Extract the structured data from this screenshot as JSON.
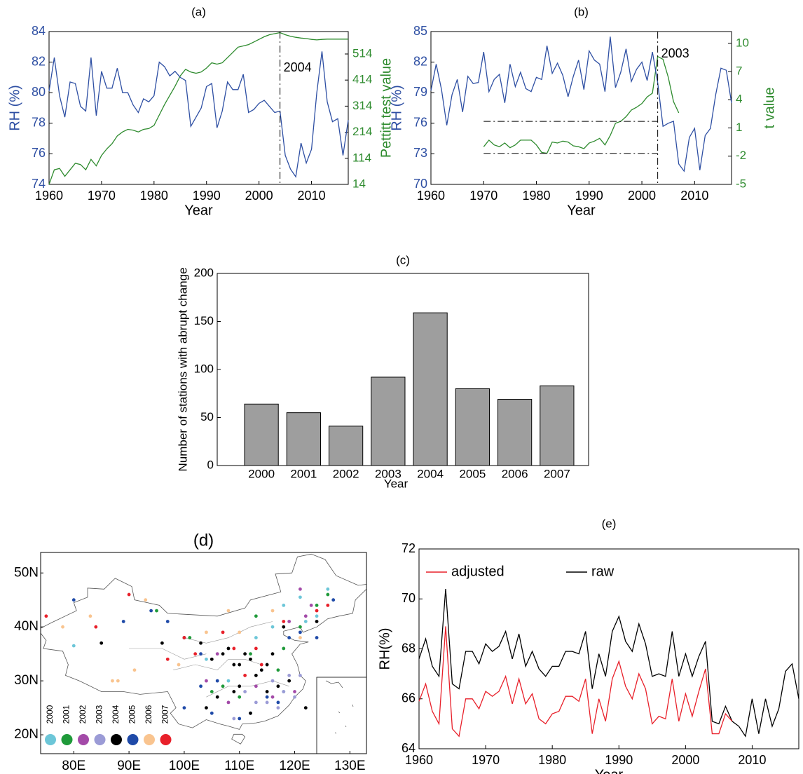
{
  "chart_data": [
    {
      "type": "line",
      "title": "(a)",
      "xlabel": "Year",
      "ylabel": "RH (%)",
      "y2label": "Pettitt test value",
      "x": [
        1960,
        1961,
        1962,
        1963,
        1964,
        1965,
        1966,
        1967,
        1968,
        1969,
        1970,
        1971,
        1972,
        1973,
        1974,
        1975,
        1976,
        1977,
        1978,
        1979,
        1980,
        1981,
        1982,
        1983,
        1984,
        1985,
        1986,
        1987,
        1988,
        1989,
        1990,
        1991,
        1992,
        1993,
        1994,
        1995,
        1996,
        1997,
        1998,
        1999,
        2000,
        2001,
        2002,
        2003,
        2004,
        2005,
        2006,
        2007,
        2008,
        2009,
        2010,
        2011,
        2012,
        2013,
        2014,
        2015,
        2016,
        2017
      ],
      "xlim": [
        1960,
        2017
      ],
      "xticks": [
        1960,
        1970,
        1980,
        1990,
        2000,
        2010
      ],
      "ylim": [
        74,
        84
      ],
      "yticks": [
        74,
        76,
        78,
        80,
        82,
        84
      ],
      "y2lim": [
        14,
        600
      ],
      "y2ticks": [
        14,
        114,
        214,
        314,
        414,
        514
      ],
      "series": [
        {
          "color": "#2e4fa3",
          "values": [
            80.1,
            82.3,
            79.8,
            78.4,
            80.7,
            80.6,
            79.1,
            78.8,
            82.3,
            78.5,
            81.4,
            80.3,
            80.3,
            81.6,
            80.0,
            80.0,
            79.2,
            78.7,
            79.6,
            79.4,
            79.8,
            82.0,
            81.7,
            81.1,
            81.4,
            81.0,
            80.8,
            77.8,
            78.4,
            79.0,
            80.4,
            80.6,
            77.7,
            78.8,
            80.7,
            80.2,
            80.2,
            81.2,
            78.7,
            78.9,
            79.3,
            79.5,
            79.1,
            78.7,
            78.8,
            75.9,
            75.0,
            74.5,
            76.7,
            75.4,
            76.3,
            80.0,
            82.7,
            79.4,
            78.1,
            78.3,
            75.9,
            78.2
          ]
        },
        {
          "color": "#2e8b2e",
          "axis": "y2",
          "values": [
            14,
            70,
            75,
            45,
            70,
            95,
            90,
            70,
            110,
            85,
            125,
            150,
            170,
            200,
            215,
            225,
            222,
            215,
            225,
            228,
            240,
            280,
            320,
            355,
            390,
            430,
            455,
            445,
            440,
            445,
            460,
            480,
            475,
            480,
            500,
            520,
            540,
            545,
            550,
            560,
            570,
            580,
            588,
            592,
            596,
            588,
            582,
            578,
            575,
            573,
            570,
            568,
            570,
            571,
            571,
            571,
            571,
            571
          ]
        }
      ],
      "annotation": {
        "text": "2004",
        "x": 2004
      }
    },
    {
      "type": "line",
      "title": "(b)",
      "xlabel": "Year",
      "ylabel": "RH (%)",
      "y2label": "t value",
      "x": [
        1960,
        1961,
        1962,
        1963,
        1964,
        1965,
        1966,
        1967,
        1968,
        1969,
        1970,
        1971,
        1972,
        1973,
        1974,
        1975,
        1976,
        1977,
        1978,
        1979,
        1980,
        1981,
        1982,
        1983,
        1984,
        1985,
        1986,
        1987,
        1988,
        1989,
        1990,
        1991,
        1992,
        1993,
        1994,
        1995,
        1996,
        1997,
        1998,
        1999,
        2000,
        2001,
        2002,
        2003,
        2004,
        2005,
        2006,
        2007,
        2008,
        2009,
        2010,
        2011,
        2012,
        2013,
        2014,
        2015,
        2016,
        2017
      ],
      "xlim": [
        1960,
        2017
      ],
      "xticks": [
        1960,
        1970,
        1980,
        1990,
        2000,
        2010
      ],
      "ylim": [
        70,
        85
      ],
      "yticks": [
        70,
        73,
        76,
        79,
        82,
        85
      ],
      "y2lim": [
        -5,
        11.25
      ],
      "y2ticks": [
        -5,
        -2,
        1,
        4,
        7,
        10
      ],
      "series": [
        {
          "color": "#2e4fa3",
          "values": [
            79.2,
            81.8,
            79.3,
            75.8,
            78.8,
            80.3,
            77.1,
            80.6,
            79.9,
            80.0,
            83.0,
            79.1,
            80.3,
            80.8,
            78.0,
            81.8,
            79.6,
            81.0,
            79.4,
            79.1,
            80.5,
            80.3,
            83.6,
            80.9,
            81.9,
            80.7,
            78.6,
            80.6,
            82.2,
            79.3,
            83.1,
            82.2,
            81.8,
            79.1,
            84.5,
            79.5,
            81.0,
            83.3,
            80.1,
            81.3,
            82.0,
            80.2,
            83.0,
            80.0,
            75.7,
            76.0,
            76.2,
            72.0,
            71.3,
            74.6,
            75.5,
            71.4,
            74.8,
            75.5,
            78.8,
            81.4,
            81.2,
            78.0
          ]
        },
        {
          "color": "#2e8b2e",
          "axis": "y2",
          "x": [
            1970,
            1971,
            1972,
            1973,
            1974,
            1975,
            1976,
            1977,
            1978,
            1979,
            1980,
            1981,
            1982,
            1983,
            1984,
            1985,
            1986,
            1987,
            1988,
            1989,
            1990,
            1991,
            1992,
            1993,
            1994,
            1995,
            1996,
            1997,
            1998,
            1999,
            2000,
            2001,
            2002,
            2003,
            2004,
            2005,
            2006,
            2007
          ],
          "values": [
            -1.0,
            -0.3,
            -0.8,
            -1.0,
            -0.6,
            -1.1,
            -0.8,
            -0.3,
            -0.3,
            -0.3,
            -0.8,
            -1.6,
            -1.7,
            -0.5,
            -0.6,
            -0.4,
            -0.5,
            -0.9,
            -1.0,
            -1.2,
            -0.6,
            -0.4,
            -0.1,
            -0.8,
            0.2,
            1.5,
            1.7,
            2.2,
            2.9,
            3.2,
            3.6,
            4.3,
            4.7,
            8.6,
            8.3,
            6.4,
            3.8,
            2.6
          ]
        }
      ],
      "hlines": [
        1.7,
        -1.7
      ],
      "annotation": {
        "text": "2003",
        "x": 2003
      }
    },
    {
      "type": "bar",
      "title": "(c)",
      "xlabel": "Year",
      "ylabel": "Number of stations with abrupt change",
      "categories": [
        "2000",
        "2001",
        "2002",
        "2003",
        "2004",
        "2005",
        "2006",
        "2007"
      ],
      "values": [
        64,
        55,
        41,
        92,
        159,
        80,
        69,
        83
      ],
      "color": "#9e9e9e",
      "ylim": [
        0,
        200
      ],
      "yticks": [
        0,
        50,
        100,
        150,
        200
      ]
    },
    {
      "type": "scatter",
      "title": "(d)",
      "xlim": [
        74,
        133
      ],
      "ylim": [
        16.5,
        53.8
      ],
      "xticks": [
        {
          "value": 80,
          "label": "80E"
        },
        {
          "value": 90,
          "label": "90E"
        },
        {
          "value": 100,
          "label": "100E"
        },
        {
          "value": 110,
          "label": "110E"
        },
        {
          "value": 120,
          "label": "120E"
        },
        {
          "value": 130,
          "label": "130E"
        }
      ],
      "yticks": [
        {
          "value": 20,
          "label": "20N"
        },
        {
          "value": 30,
          "label": "30N"
        },
        {
          "value": 40,
          "label": "40N"
        },
        {
          "value": 50,
          "label": "50N"
        }
      ],
      "series": [
        {
          "name": "2000",
          "color": "#6cc6d8",
          "x": [
            118,
            121,
            124,
            113,
            116,
            122,
            108,
            104,
            80,
            112,
            118,
            126
          ],
          "y": [
            44,
            45.5,
            42,
            38,
            40,
            41,
            30,
            34,
            36.5,
            24,
            28,
            47
          ]
        },
        {
          "name": "2001",
          "color": "#1f9a3a",
          "x": [
            112,
            121,
            124,
            126,
            107,
            105,
            117,
            113,
            101,
            95,
            118,
            110
          ],
          "y": [
            35,
            40,
            44,
            46,
            29,
            28,
            32,
            42,
            38,
            43,
            36,
            27
          ]
        },
        {
          "name": "2002",
          "color": "#a34aa8",
          "x": [
            113,
            120,
            116,
            106,
            108,
            119,
            121,
            122,
            104,
            123
          ],
          "y": [
            29,
            28,
            27,
            35,
            26,
            41,
            47,
            42,
            30,
            44
          ]
        },
        {
          "name": "2003",
          "color": "#9b9bd6",
          "x": [
            115,
            117,
            118,
            120,
            112,
            109,
            116,
            119,
            121,
            114,
            111,
            113
          ],
          "y": [
            26,
            25,
            28,
            27,
            24,
            23,
            30,
            31,
            31,
            32,
            28,
            26
          ]
        },
        {
          "name": "2004",
          "color": "#000000",
          "x": [
            85,
            96,
            100,
            103,
            105,
            107,
            108,
            109,
            110,
            111,
            112,
            113,
            114,
            115,
            116,
            118,
            110,
            106,
            104,
            112,
            109,
            115,
            117,
            119,
            124,
            122
          ],
          "y": [
            37,
            37,
            38,
            37,
            34,
            35,
            36,
            33,
            33,
            35,
            34,
            31,
            32,
            33,
            35,
            40,
            29,
            27,
            25,
            24,
            28,
            28,
            29,
            30,
            41,
            25
          ]
        },
        {
          "name": "2005",
          "color": "#1f4aa8",
          "x": [
            80,
            89,
            94,
            97,
            103,
            105,
            119,
            121,
            124,
            127,
            110,
            115,
            117,
            103,
            100,
            106
          ],
          "y": [
            45,
            41,
            43,
            41,
            29,
            24,
            38,
            39,
            38,
            45,
            23,
            27,
            26,
            35,
            25,
            30
          ]
        },
        {
          "name": "2006",
          "color": "#f9c48f",
          "x": [
            78,
            83,
            88,
            91,
            99,
            104,
            110,
            116,
            121,
            108,
            87,
            93
          ],
          "y": [
            40,
            42,
            30,
            32,
            33,
            39,
            39,
            43,
            38,
            43,
            30,
            45
          ]
        },
        {
          "name": "2007",
          "color": "#e8202a",
          "x": [
            75,
            84,
            90,
            100,
            102,
            107,
            111,
            113,
            114,
            118,
            124,
            126,
            109,
            97
          ],
          "y": [
            42,
            40,
            46,
            38,
            35,
            39,
            31,
            36,
            33,
            41,
            43,
            44,
            36,
            34
          ]
        }
      ]
    },
    {
      "type": "line",
      "title": "(e)",
      "xlabel": "Year",
      "ylabel": "RH(%)",
      "legend": "upper left",
      "x": [
        1960,
        1961,
        1962,
        1963,
        1964,
        1965,
        1966,
        1967,
        1968,
        1969,
        1970,
        1971,
        1972,
        1973,
        1974,
        1975,
        1976,
        1977,
        1978,
        1979,
        1980,
        1981,
        1982,
        1983,
        1984,
        1985,
        1986,
        1987,
        1988,
        1989,
        1990,
        1991,
        1992,
        1993,
        1994,
        1995,
        1996,
        1997,
        1998,
        1999,
        2000,
        2001,
        2002,
        2003,
        2004,
        2005,
        2006,
        2007,
        2008,
        2009,
        2010,
        2011,
        2012,
        2013,
        2014,
        2015,
        2016,
        2017
      ],
      "xlim": [
        1960,
        2017
      ],
      "xticks": [
        1960,
        1970,
        1980,
        1990,
        2000,
        2010
      ],
      "ylim": [
        64,
        72
      ],
      "yticks": [
        64,
        66,
        68,
        70,
        72
      ],
      "series": [
        {
          "name": "adjusted",
          "color": "#e8202a",
          "values": [
            65.9,
            66.6,
            65.5,
            65.0,
            68.9,
            64.8,
            64.5,
            66.0,
            66.0,
            65.6,
            66.3,
            66.1,
            66.3,
            66.9,
            65.8,
            66.8,
            65.8,
            66.2,
            65.2,
            65.0,
            65.4,
            65.5,
            66.1,
            66.1,
            65.9,
            66.8,
            64.6,
            66.0,
            65.1,
            66.8,
            67.5,
            66.5,
            66.0,
            67.0,
            66.4,
            65.0,
            65.3,
            65.2,
            66.8,
            65.1,
            66.2,
            65.3,
            66.3,
            67.2,
            64.6,
            64.6,
            65.4,
            65.1,
            null,
            null,
            null,
            null,
            null,
            null,
            null,
            null,
            null,
            null
          ]
        },
        {
          "name": "raw",
          "color": "#000000",
          "values": [
            67.6,
            68.4,
            67.3,
            66.9,
            70.4,
            66.6,
            66.4,
            67.9,
            67.9,
            67.4,
            68.2,
            67.9,
            68.1,
            68.7,
            67.6,
            68.6,
            67.3,
            67.9,
            67.2,
            66.9,
            67.3,
            67.3,
            67.9,
            67.9,
            67.8,
            68.7,
            66.4,
            67.8,
            66.9,
            68.7,
            69.3,
            68.3,
            67.9,
            69.0,
            68.2,
            66.9,
            67.0,
            66.9,
            68.7,
            66.9,
            67.8,
            66.9,
            67.7,
            68.3,
            65.1,
            65.0,
            65.7,
            65.1,
            64.9,
            64.5,
            66.0,
            64.6,
            66.0,
            64.9,
            65.6,
            67.1,
            67.4,
            66.0
          ]
        }
      ]
    }
  ]
}
